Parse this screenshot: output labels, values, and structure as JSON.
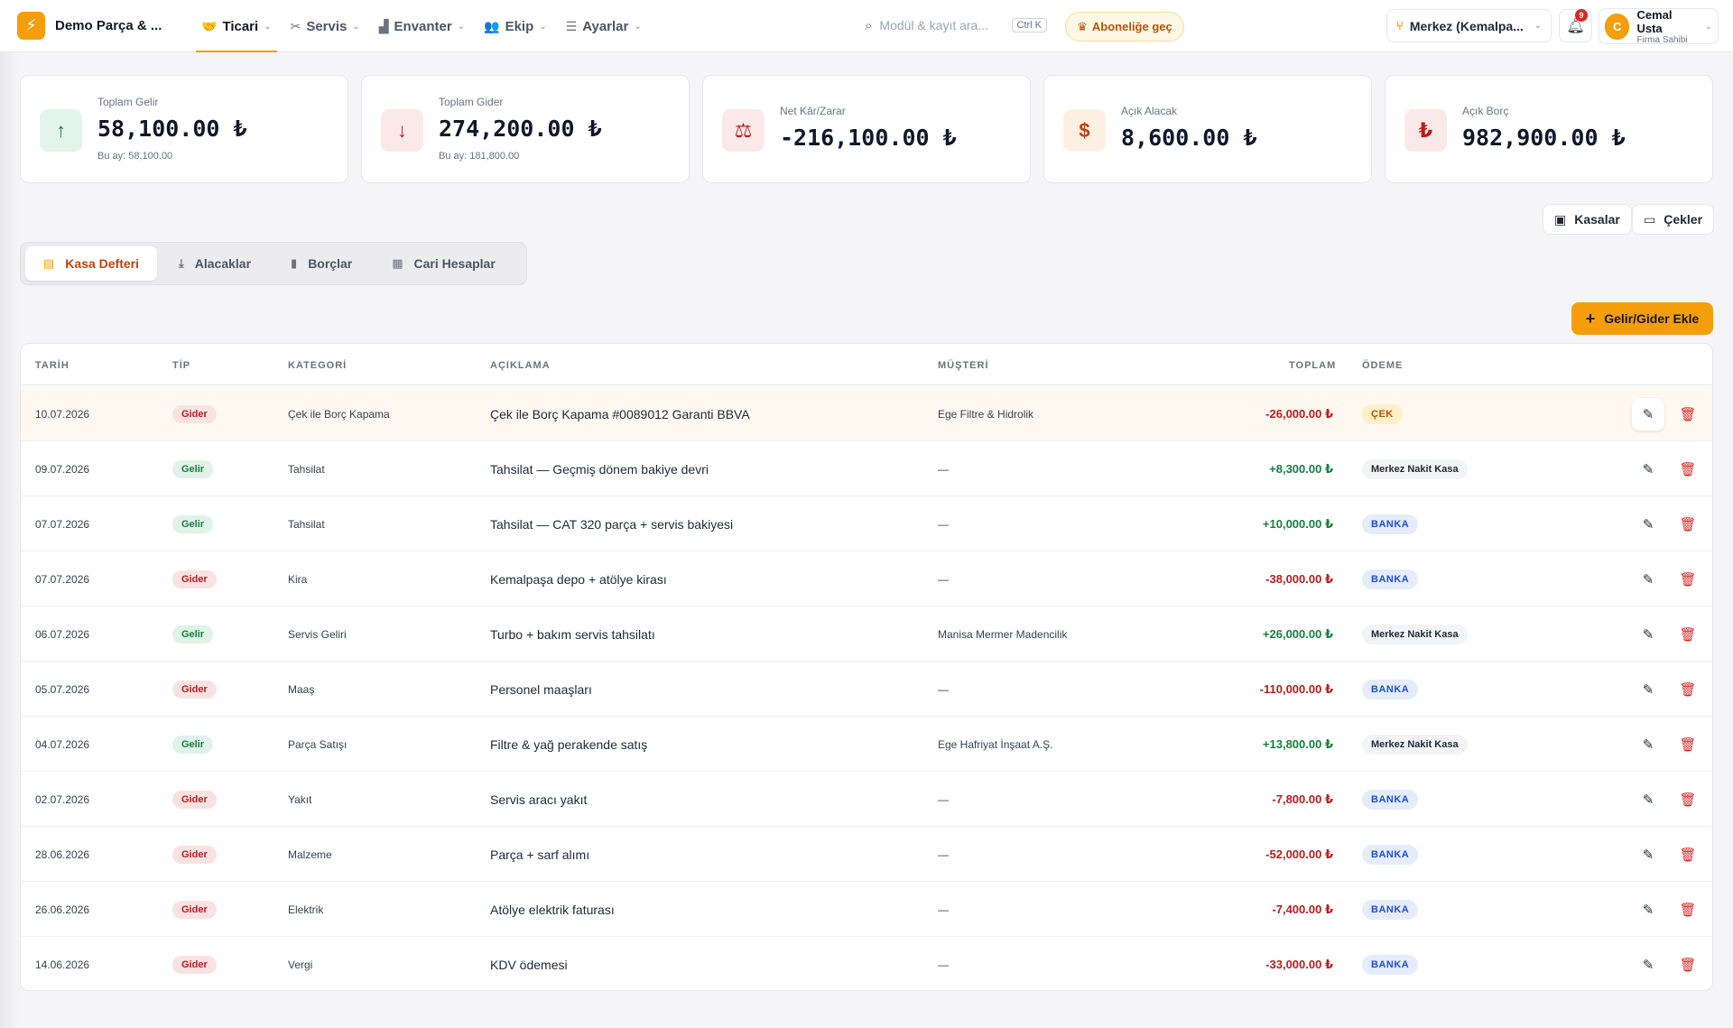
{
  "header": {
    "brand": "Demo Parça & ...",
    "nav": [
      {
        "label": "Ticari",
        "icon": "handshake-icon"
      },
      {
        "label": "Servis",
        "icon": "wrench-icon"
      },
      {
        "label": "Envanter",
        "icon": "warehouse-icon"
      },
      {
        "label": "Ekip",
        "icon": "users-icon"
      },
      {
        "label": "Ayarlar",
        "icon": "sliders-icon"
      }
    ],
    "search_placeholder": "Modül & kayıt ara...",
    "search_shortcut": "Ctrl K",
    "subscribe_label": "Aboneliğe geç",
    "branch": "Merkez (Kemalpa...",
    "notifications_count": "9",
    "user": {
      "initial": "C",
      "name": "Cemal Usta",
      "role": "Firma Sahibi"
    }
  },
  "stats": [
    {
      "label": "Toplam Gelir",
      "value": "58,100.00 ₺",
      "sub": "Bu ay: 58,100.00",
      "icon": "arrow-up-icon",
      "tone": "green"
    },
    {
      "label": "Toplam Gider",
      "value": "274,200.00 ₺",
      "sub": "Bu ay: 181,800.00",
      "icon": "arrow-down-icon",
      "tone": "red"
    },
    {
      "label": "Net Kâr/Zarar",
      "value": "-216,100.00 ₺",
      "sub": "",
      "icon": "scale-icon",
      "tone": "red"
    },
    {
      "label": "Açık Alacak",
      "value": "8,600.00 ₺",
      "sub": "",
      "icon": "hand-coin-icon",
      "tone": "amber"
    },
    {
      "label": "Açık Borç",
      "value": "982,900.00 ₺",
      "sub": "",
      "icon": "invoice-icon",
      "tone": "red"
    }
  ],
  "side_buttons": {
    "kasalar": "Kasalar",
    "cekler": "Çekler"
  },
  "tabs": [
    "Kasa Defteri",
    "Alacaklar",
    "Borçlar",
    "Cari Hesaplar"
  ],
  "add_button": "Gelir/Gider Ekle",
  "table": {
    "headers": {
      "date": "TARİH",
      "type": "TİP",
      "category": "KATEGORİ",
      "description": "AÇIKLAMA",
      "customer": "MÜŞTERİ",
      "total": "TOPLAM",
      "payment": "ÖDEME"
    },
    "rows": [
      {
        "date": "10.07.2026",
        "type": "Gider",
        "category": "Çek ile Borç Kapama",
        "description": "Çek ile Borç Kapama #0089012 Garanti BBVA",
        "customer": "Ege Filtre & Hidrolik",
        "total": "-26,000.00 ₺",
        "payment": "ÇEK"
      },
      {
        "date": "09.07.2026",
        "type": "Gelir",
        "category": "Tahsilat",
        "description": "Tahsilat — Geçmiş dönem bakiye devri",
        "customer": "—",
        "total": "+8,300.00 ₺",
        "payment": "Merkez Nakit Kasa"
      },
      {
        "date": "07.07.2026",
        "type": "Gelir",
        "category": "Tahsilat",
        "description": "Tahsilat — CAT 320 parça + servis bakiyesi",
        "customer": "—",
        "total": "+10,000.00 ₺",
        "payment": "BANKA"
      },
      {
        "date": "07.07.2026",
        "type": "Gider",
        "category": "Kira",
        "description": "Kemalpaşa depo + atölye kirası",
        "customer": "—",
        "total": "-38,000.00 ₺",
        "payment": "BANKA"
      },
      {
        "date": "06.07.2026",
        "type": "Gelir",
        "category": "Servis Geliri",
        "description": "Turbo + bakım servis tahsilatı",
        "customer": "Manisa Mermer Madencilik",
        "total": "+26,000.00 ₺",
        "payment": "Merkez Nakit Kasa"
      },
      {
        "date": "05.07.2026",
        "type": "Gider",
        "category": "Maaş",
        "description": "Personel maaşları",
        "customer": "—",
        "total": "-110,000.00 ₺",
        "payment": "BANKA"
      },
      {
        "date": "04.07.2026",
        "type": "Gelir",
        "category": "Parça Satışı",
        "description": "Filtre & yağ perakende satış",
        "customer": "Ege Hafriyat İnşaat A.Ş.",
        "total": "+13,800.00 ₺",
        "payment": "Merkez Nakit Kasa"
      },
      {
        "date": "02.07.2026",
        "type": "Gider",
        "category": "Yakıt",
        "description": "Servis aracı yakıt",
        "customer": "—",
        "total": "-7,800.00 ₺",
        "payment": "BANKA"
      },
      {
        "date": "28.06.2026",
        "type": "Gider",
        "category": "Malzeme",
        "description": "Parça + sarf alımı",
        "customer": "—",
        "total": "-52,000.00 ₺",
        "payment": "BANKA"
      },
      {
        "date": "26.06.2026",
        "type": "Gider",
        "category": "Elektrik",
        "description": "Atölye elektrik faturası",
        "customer": "—",
        "total": "-7,400.00 ₺",
        "payment": "BANKA"
      },
      {
        "date": "14.06.2026",
        "type": "Gider",
        "category": "Vergi",
        "description": "KDV ödemesi",
        "customer": "—",
        "total": "-33,000.00 ₺",
        "payment": "BANKA"
      }
    ]
  }
}
